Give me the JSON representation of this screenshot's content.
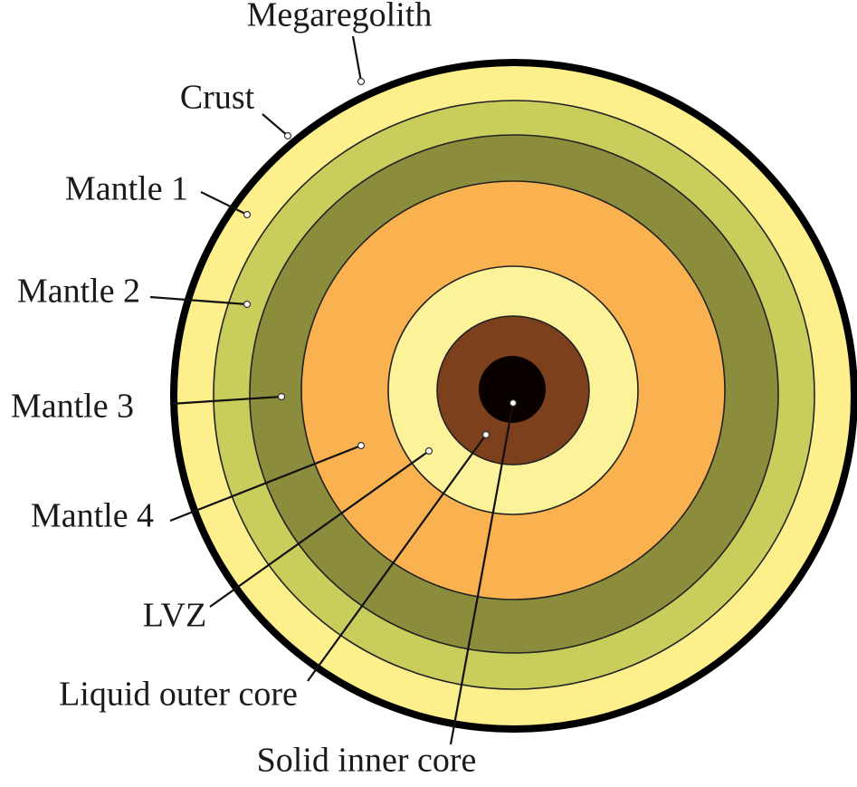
{
  "labels": [
    "Megaregolith",
    "Crust",
    "Mantle 1",
    "Mantle 2",
    "Mantle 3",
    "Mantle 4",
    "LVZ",
    "Liquid outer core",
    "Solid inner core"
  ]
}
